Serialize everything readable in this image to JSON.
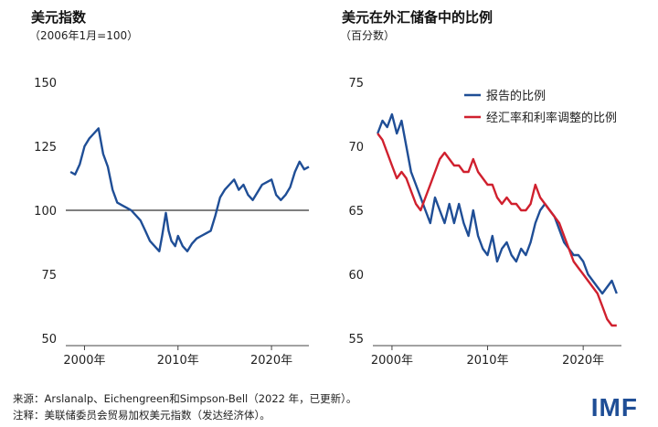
{
  "footer": {
    "source": "来源：Arslanalp、Eichengreen和Simpson-Bell（2022 年，已更新）。",
    "note": "注释：美联储委员会贸易加权美元指数（发达经济体）。",
    "logo": "IMF"
  },
  "colors": {
    "blue": "#1f4e96",
    "red": "#d0202e",
    "axis": "#444444"
  },
  "chart_data": [
    {
      "type": "line",
      "title": "美元指数",
      "subtitle": "（2006年1月=100）",
      "xlim": [
        1998,
        2024
      ],
      "ylim": [
        50,
        150
      ],
      "yticks": [
        50,
        75,
        100,
        125,
        150
      ],
      "xticks": [
        {
          "v": 2000,
          "label": "2000年"
        },
        {
          "v": 2010,
          "label": "2010年"
        },
        {
          "v": 2020,
          "label": "2020年"
        }
      ],
      "reference_line": 100,
      "series": [
        {
          "color": "#1f4e96",
          "x": [
            1998.5,
            1999,
            1999.5,
            2000,
            2000.5,
            2001,
            2001.5,
            2002,
            2002.5,
            2003,
            2003.5,
            2004,
            2004.5,
            2005,
            2005.5,
            2006,
            2006.5,
            2007,
            2007.5,
            2008,
            2008.3,
            2008.7,
            2009,
            2009.3,
            2009.7,
            2010,
            2010.5,
            2011,
            2011.5,
            2012,
            2012.5,
            2013,
            2013.5,
            2014,
            2014.5,
            2015,
            2015.5,
            2016,
            2016.5,
            2017,
            2017.5,
            2018,
            2018.5,
            2019,
            2019.5,
            2020,
            2020.5,
            2021,
            2021.5,
            2022,
            2022.5,
            2023,
            2023.5,
            2024
          ],
          "y": [
            115,
            114,
            118,
            125,
            128,
            130,
            132,
            122,
            117,
            108,
            103,
            102,
            101,
            100,
            98,
            96,
            92,
            88,
            86,
            84,
            90,
            99,
            92,
            88,
            86,
            90,
            86,
            84,
            87,
            89,
            90,
            91,
            92,
            98,
            105,
            108,
            110,
            112,
            108,
            110,
            106,
            104,
            107,
            110,
            111,
            112,
            106,
            104,
            106,
            109,
            115,
            119,
            116,
            117
          ]
        }
      ]
    },
    {
      "type": "line",
      "title": "美元在外汇储备中的比例",
      "subtitle": "（百分数）",
      "xlim": [
        1998,
        2024
      ],
      "ylim": [
        55,
        75
      ],
      "yticks": [
        55,
        60,
        65,
        70,
        75
      ],
      "xticks": [
        {
          "v": 2000,
          "label": "2000年"
        },
        {
          "v": 2010,
          "label": "2010年"
        },
        {
          "v": 2020,
          "label": "2020年"
        }
      ],
      "legend_position": "top-right",
      "series": [
        {
          "name": "报告的比例",
          "color": "#1f4e96",
          "x": [
            1998.5,
            1999,
            1999.5,
            2000,
            2000.5,
            2001,
            2001.5,
            2002,
            2002.5,
            2003,
            2003.5,
            2004,
            2004.5,
            2005,
            2005.5,
            2006,
            2006.5,
            2007,
            2007.5,
            2008,
            2008.5,
            2009,
            2009.5,
            2010,
            2010.5,
            2011,
            2011.5,
            2012,
            2012.5,
            2013,
            2013.5,
            2014,
            2014.5,
            2015,
            2015.5,
            2016,
            2016.5,
            2017,
            2017.5,
            2018,
            2018.5,
            2019,
            2019.5,
            2020,
            2020.5,
            2021,
            2021.5,
            2022,
            2022.5,
            2023,
            2023.5
          ],
          "y": [
            71,
            72,
            71.5,
            72.5,
            71,
            72,
            70,
            68,
            67,
            66,
            65,
            64,
            66,
            65,
            64,
            65.5,
            64,
            65.5,
            64,
            63,
            65,
            63,
            62,
            61.5,
            63,
            61,
            62,
            62.5,
            61.5,
            61,
            62,
            61.5,
            62.5,
            64,
            65,
            65.5,
            65,
            64.5,
            63.5,
            62.5,
            62,
            61.5,
            61.5,
            61,
            60,
            59.5,
            59,
            58.5,
            59,
            59.5,
            58.5
          ]
        },
        {
          "name": "经汇率和利率调整的比例",
          "color": "#d0202e",
          "x": [
            1998.5,
            1999,
            1999.5,
            2000,
            2000.5,
            2001,
            2001.5,
            2002,
            2002.5,
            2003,
            2003.5,
            2004,
            2004.5,
            2005,
            2005.5,
            2006,
            2006.5,
            2007,
            2007.5,
            2008,
            2008.5,
            2009,
            2009.5,
            2010,
            2010.5,
            2011,
            2011.5,
            2012,
            2012.5,
            2013,
            2013.5,
            2014,
            2014.5,
            2015,
            2015.5,
            2016,
            2016.5,
            2017,
            2017.5,
            2018,
            2018.5,
            2019,
            2019.5,
            2020,
            2020.5,
            2021,
            2021.5,
            2022,
            2022.5,
            2023,
            2023.5
          ],
          "y": [
            71,
            70.5,
            69.5,
            68.5,
            67.5,
            68,
            67.5,
            66.5,
            65.5,
            65,
            66,
            67,
            68,
            69,
            69.5,
            69,
            68.5,
            68.5,
            68,
            68,
            69,
            68,
            67.5,
            67,
            67,
            66,
            65.5,
            66,
            65.5,
            65.5,
            65,
            65,
            65.5,
            67,
            66,
            65.5,
            65,
            64.5,
            64,
            63,
            62,
            61,
            60.5,
            60,
            59.5,
            59,
            58.5,
            57.5,
            56.5,
            56,
            56
          ]
        }
      ]
    }
  ]
}
